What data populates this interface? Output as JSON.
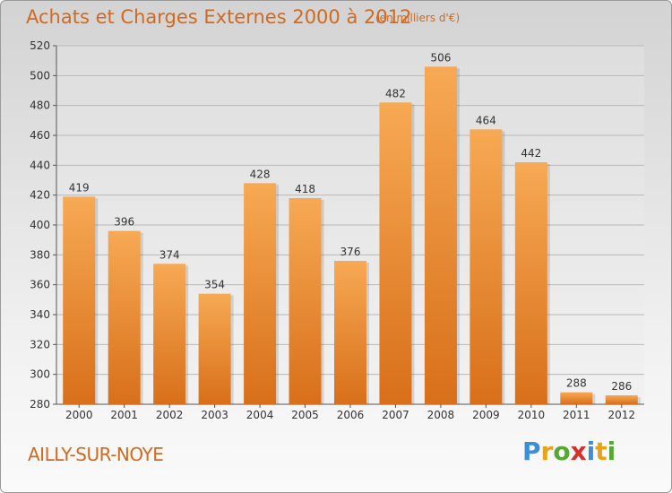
{
  "header": {
    "title": "Achats et Charges Externes 2000 à 2012",
    "subtitle": "(en milliers d'€)"
  },
  "footer": {
    "commune": "AILLY-SUR-NOYE",
    "logo": "Proxiti"
  },
  "colors": {
    "accent": "#d2691e",
    "bar_top": "#f7a954",
    "bar_bottom": "#d86f1a",
    "grid": "#b9b9b9"
  },
  "chart_data": {
    "type": "bar",
    "title": "Achats et Charges Externes 2000 à 2012",
    "subtitle": "(en milliers d'€)",
    "categories": [
      "2000",
      "2001",
      "2002",
      "2003",
      "2004",
      "2005",
      "2006",
      "2007",
      "2008",
      "2009",
      "2010",
      "2011",
      "2012"
    ],
    "values": [
      419,
      396,
      374,
      354,
      428,
      418,
      376,
      482,
      506,
      464,
      442,
      288,
      286
    ],
    "ylim": [
      280,
      520
    ],
    "yticks": [
      280,
      300,
      320,
      340,
      360,
      380,
      400,
      420,
      440,
      460,
      480,
      500,
      520
    ],
    "grid": true,
    "xlabel": "",
    "ylabel": ""
  }
}
